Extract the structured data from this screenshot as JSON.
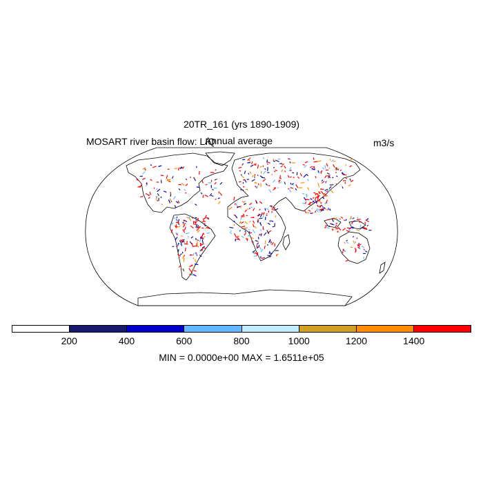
{
  "map": {
    "title": "20TR_161 (yrs 1890-1909)",
    "variable_label": "MOSART river basin flow: LIQ",
    "subtitle": "Annual average",
    "units": "m3/s",
    "projection": "robinson",
    "coastline_color": "#000000"
  },
  "colorbar": {
    "colors": [
      "#ffffff",
      "#191970",
      "#0000cd",
      "#63b8ff",
      "#bfefff",
      "#d2a020",
      "#ff8c00",
      "#ff0000"
    ],
    "tick_labels": [
      "200",
      "400",
      "600",
      "800",
      "1000",
      "1200",
      "1400"
    ]
  },
  "stats": {
    "text": "MIN = 0.0000e+00 MAX = 1.6511e+05"
  },
  "chart_data": {
    "type": "heatmap",
    "title": "20TR_161 (yrs 1890-1909)",
    "subtitle": "Annual average",
    "variable": "MOSART river basin flow: LIQ",
    "units": "m3/s",
    "levels": [
      200,
      400,
      600,
      800,
      1000,
      1200,
      1400
    ],
    "min": 0.0,
    "max": 165110
  }
}
